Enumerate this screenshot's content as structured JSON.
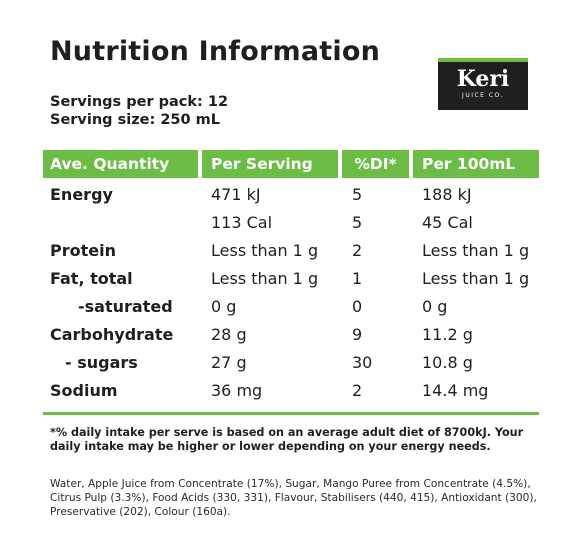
{
  "title": "Nutrition Information",
  "logo": {
    "word": "Keri",
    "sub": "JUICE CO."
  },
  "servings": {
    "per_pack": "Servings per pack: 12",
    "size": "Serving size: 250 mL"
  },
  "headers": {
    "quantity": "Ave. Quantity",
    "per_serving": "Per Serving",
    "di": "%DI*",
    "per_100": "Per 100mL"
  },
  "rows": [
    {
      "label": "Energy",
      "per_serving": "471 kJ",
      "di": "5",
      "per_100": "188 kJ"
    },
    {
      "label": "",
      "per_serving": "113 Cal",
      "di": "5",
      "per_100": "45 Cal"
    },
    {
      "label": "Protein",
      "per_serving": "Less than 1 g",
      "di": "2",
      "per_100": "Less than 1 g"
    },
    {
      "label": "Fat, total",
      "per_serving": "Less than 1 g",
      "di": "1",
      "per_100": "Less than 1 g"
    },
    {
      "label": "-saturated",
      "per_serving": "0 g",
      "di": "0",
      "per_100": "0 g"
    },
    {
      "label": "Carbohydrate",
      "per_serving": "28 g",
      "di": "9",
      "per_100": "11.2 g"
    },
    {
      "label": "- sugars",
      "per_serving": "27 g",
      "di": "30",
      "per_100": "10.8 g"
    },
    {
      "label": "Sodium",
      "per_serving": "36 mg",
      "di": "2",
      "per_100": "14.4 mg"
    }
  ],
  "footnote": "*% daily intake per serve is based on an average adult diet of 8700kJ. Your daily intake may be higher or lower depending on your energy needs.",
  "ingredients": "Water, Apple Juice from Concentrate (17%), Sugar, Mango Puree from Concentrate (4.5%), Citrus Pulp (3.3%), Food Acids (330, 331), Flavour, Stabilisers (440, 415), Antioxidant (300), Preservative (202), Colour (160a).",
  "colors": {
    "accent_green": "#6cbd45",
    "text": "#1f1f1f",
    "logo_bg": "#1f1f1f"
  }
}
